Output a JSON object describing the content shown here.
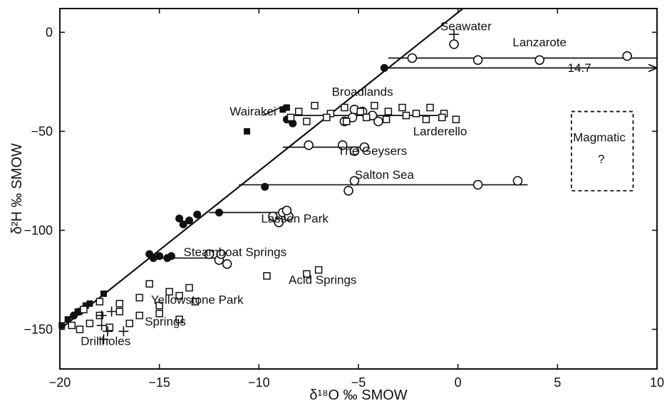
{
  "chart_data": {
    "type": "scatter",
    "xlabel": "δ¹⁸O ‰ SMOW",
    "ylabel": "δ²H ‰ SMOW",
    "xlim": [
      -20,
      10
    ],
    "ylim": [
      -170,
      12
    ],
    "xticks": [
      -20,
      -15,
      -10,
      -5,
      0,
      5,
      10
    ],
    "yticks": [
      0,
      -50,
      -100,
      -150
    ],
    "xtick_labels": [
      "−20",
      "−15",
      "−10",
      "−5",
      "0",
      "5",
      "10"
    ],
    "ytick_labels": [
      "0",
      "−50",
      "−100",
      "−150"
    ],
    "grid": false,
    "meteoric_water_line": {
      "slope": 8,
      "intercept": 10
    },
    "annotations": [
      {
        "text": "Seawater",
        "x": 0.4,
        "y": 1
      },
      {
        "text": "Lanzarote",
        "x": 4.1,
        "y": -7
      },
      {
        "text": "14.7",
        "x": 6.1,
        "y": -20
      },
      {
        "text": "Broadlands",
        "x": -4.8,
        "y": -32
      },
      {
        "text": "Wairakei",
        "x": -10.3,
        "y": -42
      },
      {
        "text": "Larderello",
        "x": -0.9,
        "y": -52
      },
      {
        "text": "The Geysers",
        "x": -4.3,
        "y": -62
      },
      {
        "text": "Magmatic",
        "x": 7.1,
        "y": -55
      },
      {
        "text": "?",
        "x": 7.2,
        "y": -66
      },
      {
        "text": "Salton Sea",
        "x": -3.7,
        "y": -74
      },
      {
        "text": "Lassen Park",
        "x": -8.2,
        "y": -96
      },
      {
        "text": "Steamboat Springs",
        "x": -11.2,
        "y": -113
      },
      {
        "text": "Acid Springs",
        "x": -6.8,
        "y": -127
      },
      {
        "text": "Yellowstone Park",
        "x": -13.1,
        "y": -137
      },
      {
        "text": "Springs",
        "x": -14.7,
        "y": -148
      },
      {
        "text": "Drillholes",
        "x": -17.7,
        "y": -158
      }
    ],
    "magmatic_box": {
      "x": [
        5.7,
        8.8
      ],
      "y": [
        -80,
        -40
      ]
    },
    "shift_lines": [
      {
        "x": [
          -3.5,
          10
        ],
        "y": [
          -13,
          -13
        ]
      },
      {
        "x": [
          -3.5,
          10
        ],
        "y": [
          -18,
          -18
        ],
        "arrow": true
      },
      {
        "x": [
          -8.4,
          -1.0
        ],
        "y": [
          -42,
          -42
        ]
      },
      {
        "x": [
          -8.8,
          -4.5
        ],
        "y": [
          -58,
          -58
        ]
      },
      {
        "x": [
          -11.0,
          3.5
        ],
        "y": [
          -77,
          -77
        ]
      },
      {
        "x": [
          -12.5,
          -8.5
        ],
        "y": [
          -91,
          -91
        ]
      },
      {
        "x": [
          -15.0,
          -11.8
        ],
        "y": [
          -114,
          -114
        ]
      },
      {
        "x": [
          -9.8,
          -8.7
        ],
        "y": [
          -42,
          -37
        ]
      }
    ],
    "series": [
      {
        "marker": "filled-circle",
        "x": [
          -3.7,
          -8.6,
          -8.3,
          -9.7,
          -12.0,
          -13.1,
          -13.5,
          -13.8,
          -14.0,
          -14.4,
          -14.6,
          -15.0,
          -15.3,
          -15.5,
          -19.0,
          -19.3
        ],
        "y": [
          -18,
          -44,
          -46,
          -78,
          -91,
          -92,
          -95,
          -97,
          -94,
          -113,
          -114,
          -113,
          -114,
          -112,
          -141,
          -143
        ]
      },
      {
        "marker": "open-circle",
        "x": [
          -0.2,
          -2.3,
          1.0,
          4.1,
          8.5,
          -5.7,
          -5.2,
          -4.8,
          -4.3,
          -4.0,
          -5.3,
          -7.5,
          -5.8,
          -5.2,
          -4.7,
          -5.2,
          -5.5,
          1.0,
          3.0,
          -9.3,
          -9.0,
          -8.8,
          -8.5,
          -8.6,
          -12.5,
          -12.0,
          -11.6,
          -11.9
        ],
        "y": [
          -6,
          -13,
          -14,
          -14,
          -12,
          -45,
          -39,
          -40,
          -42,
          -45,
          -43,
          -57,
          -57,
          -60,
          -58,
          -75,
          -80,
          -77,
          -75,
          -93,
          -96,
          -91,
          -93,
          -90,
          -112,
          -115,
          -117,
          -112
        ]
      },
      {
        "marker": "filled-square",
        "x": [
          -8.8,
          -8.6,
          -10.6,
          -19.1,
          -18.5,
          -17.8,
          -18.7,
          -19.6,
          -19.9
        ],
        "y": [
          -39,
          -38,
          -50,
          -141,
          -137,
          -132,
          -138,
          -145,
          -148
        ]
      },
      {
        "marker": "open-square",
        "x": [
          -8.0,
          -7.2,
          -6.4,
          -5.7,
          -4.9,
          -4.2,
          -3.5,
          -2.8,
          -2.1,
          -1.4,
          -0.7,
          -0.1,
          -0.8,
          -1.6,
          -2.6,
          -3.6,
          -4.6,
          -5.6,
          -6.6,
          -7.6,
          -8.4,
          -9.6,
          -7.6,
          -7.0,
          -15.5,
          -14.5,
          -13.5,
          -13.2,
          -14.0,
          -15.0,
          -16.0,
          -17.0,
          -18.0,
          -18.8,
          -18.0,
          -17.0,
          -16.0,
          -15.0,
          -14.0,
          -16.5,
          -17.5,
          -18.5,
          -19.0,
          -19.4
        ],
        "y": [
          -40,
          -37,
          -41,
          -38,
          -40,
          -37,
          -40,
          -38,
          -41,
          -38,
          -41,
          -44,
          -43,
          -44,
          -42,
          -44,
          -43,
          -45,
          -43,
          -45,
          -43,
          -123,
          -122,
          -120,
          -127,
          -131,
          -129,
          -136,
          -133,
          -138,
          -134,
          -137,
          -136,
          -140,
          -143,
          -141,
          -143,
          -142,
          -145,
          -147,
          -149,
          -147,
          -150,
          -148
        ]
      },
      {
        "marker": "plus",
        "x": [
          -0.2,
          -17.9,
          -17.4,
          -17.9,
          -17.6,
          -16.8,
          -17.8
        ],
        "y": [
          -1,
          -143,
          -141,
          -148,
          -151,
          -151,
          -155
        ]
      }
    ]
  }
}
